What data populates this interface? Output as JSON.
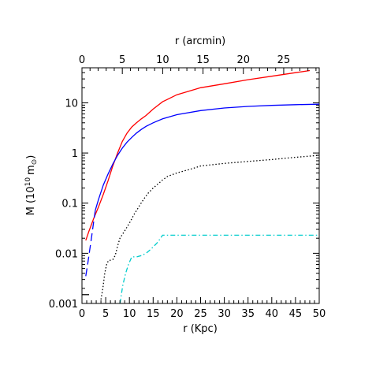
{
  "chart_data": {
    "type": "line",
    "title": "",
    "xlabel": "r (Kpc)",
    "x2label": "r (arcmin)",
    "ylabel": "M (10",
    "ylabel_exp": "10",
    "ylabel_unit": "m",
    "ylabel_sub": "⊙",
    "ylabel_close": ")",
    "xlim": [
      0,
      50
    ],
    "x2lim": [
      0,
      29.4
    ],
    "ylim": [
      0.001,
      50
    ],
    "yscale": "log",
    "grid": false,
    "legend": "none",
    "x_ticks": [
      0,
      5,
      10,
      15,
      20,
      25,
      30,
      35,
      40,
      45,
      50
    ],
    "x_tick_labels": [
      "0",
      "5",
      "10",
      "15",
      "20",
      "25",
      "30",
      "35",
      "40",
      "45",
      "50"
    ],
    "x2_ticks": [
      0,
      5,
      10,
      15,
      20,
      25
    ],
    "x2_tick_labels": [
      "0",
      "5",
      "10",
      "15",
      "20",
      "25"
    ],
    "y_ticks": [
      0.001,
      0.01,
      0.1,
      1,
      10
    ],
    "y_tick_labels": [
      "0.001",
      "0.01",
      "0.1",
      "1",
      "10"
    ],
    "series": [
      {
        "color": "#ff0000",
        "style": "solid",
        "x": [
          0.8,
          1.5,
          2.5,
          3.5,
          4.5,
          5.5,
          6.5,
          7.5,
          8.5,
          9.5,
          10.5,
          11.5,
          12.5,
          13.5,
          15,
          17,
          20,
          25,
          30,
          35,
          40,
          45,
          48
        ],
        "y": [
          0.018,
          0.028,
          0.05,
          0.085,
          0.15,
          0.28,
          0.55,
          1.0,
          1.7,
          2.5,
          3.3,
          4.0,
          4.8,
          5.6,
          7.5,
          10.5,
          14.5,
          20,
          24,
          29,
          34,
          40,
          44
        ]
      },
      {
        "color": "#0000ff",
        "style": "solid",
        "x": [
          2.8,
          3.5,
          4.5,
          5.5,
          6.5,
          7.5,
          8.5,
          9.5,
          10.5,
          11.5,
          12.5,
          13.5,
          15,
          17,
          20,
          25,
          30,
          35,
          40,
          45,
          50
        ],
        "y": [
          0.072,
          0.12,
          0.23,
          0.38,
          0.6,
          0.9,
          1.25,
          1.65,
          2.05,
          2.5,
          2.95,
          3.4,
          4.0,
          4.8,
          5.8,
          7.0,
          7.9,
          8.5,
          8.9,
          9.2,
          9.4
        ]
      },
      {
        "color": "#0000ff",
        "style": "dashed",
        "x": [
          0.8,
          1.2,
          1.6,
          2.0,
          2.4,
          2.8
        ],
        "y": [
          0.0035,
          0.006,
          0.011,
          0.02,
          0.038,
          0.072
        ]
      },
      {
        "color": "#000000",
        "style": "solid",
        "x": [
          0.05,
          1.5
        ],
        "y": [
          0.0015,
          0.0015
        ]
      },
      {
        "color": "#000000",
        "style": "dotted",
        "x": [
          4,
          4.4,
          4.8,
          5.2,
          5.6,
          6.0,
          6.5,
          7.0,
          7.5,
          8.0,
          9.0,
          10,
          11,
          12,
          13,
          14,
          15,
          16,
          17,
          18,
          20,
          23,
          25,
          30,
          35,
          40,
          45,
          50
        ],
        "y": [
          0.0012,
          0.002,
          0.004,
          0.006,
          0.0072,
          0.0073,
          0.0075,
          0.009,
          0.014,
          0.02,
          0.028,
          0.04,
          0.06,
          0.085,
          0.12,
          0.16,
          0.2,
          0.24,
          0.29,
          0.34,
          0.4,
          0.48,
          0.55,
          0.62,
          0.68,
          0.74,
          0.82,
          0.9
        ]
      },
      {
        "color": "#00cccc",
        "style": "dashdot",
        "x": [
          8,
          8.6,
          9.2,
          9.8,
          10.5,
          11.5,
          12.5,
          13.5,
          14.5,
          15.2,
          15.8,
          16.4,
          17,
          20,
          25,
          30,
          35,
          40,
          45,
          50
        ],
        "y": [
          0.001,
          0.0023,
          0.004,
          0.006,
          0.0085,
          0.0085,
          0.009,
          0.01,
          0.012,
          0.014,
          0.016,
          0.019,
          0.023,
          0.023,
          0.023,
          0.023,
          0.023,
          0.023,
          0.023,
          0.023
        ]
      }
    ]
  }
}
